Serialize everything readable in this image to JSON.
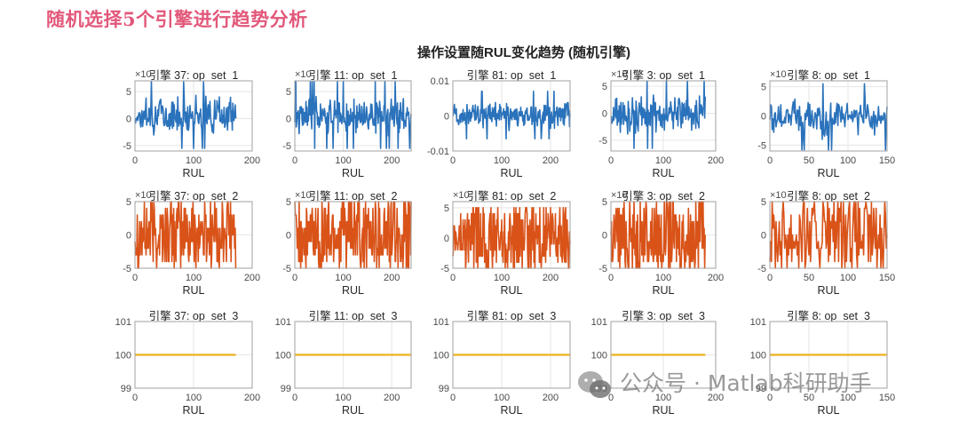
{
  "heading": "随机选择5个引擎进行趋势分析",
  "figure_title": "操作设置随RUL变化趋势 (随机引擎)",
  "watermark": "公众号 · Matlab科研助手",
  "colors": {
    "op_set_1": "#2a72bb",
    "op_set_2": "#d95319",
    "op_set_3": "#edb120",
    "heading": "#e2587a"
  },
  "chart_data": {
    "type": "line",
    "title": "操作设置随RUL变化趋势 (随机引擎)",
    "layout": "3x5 subplot grid",
    "xlabel": "RUL",
    "grid": true,
    "engines": [
      37,
      11,
      81,
      3,
      8
    ],
    "subplots": [
      {
        "row": 1,
        "engine": 37,
        "title": "引擎 37: op_set_1",
        "xlim": [
          0,
          200
        ],
        "xticks": [
          0,
          100,
          200
        ],
        "ylim": [
          -6,
          7
        ],
        "yticks": [
          -5,
          0,
          5
        ],
        "y_exponent": "×10^-3",
        "data_x_max": 172,
        "series_color": "#2a72bb",
        "value_range": [
          -5.5,
          6.8
        ]
      },
      {
        "row": 1,
        "engine": 11,
        "title": "引擎 11: op_set_1",
        "xlim": [
          0,
          240
        ],
        "xticks": [
          0,
          100,
          200
        ],
        "ylim": [
          -6,
          7
        ],
        "yticks": [
          -5,
          0,
          5
        ],
        "y_exponent": "×10^-3",
        "data_x_max": 240,
        "series_color": "#2a72bb",
        "value_range": [
          -5.5,
          6.8
        ]
      },
      {
        "row": 1,
        "engine": 81,
        "title": "引擎 81: op_set_1",
        "xlim": [
          0,
          240
        ],
        "xticks": [
          0,
          100,
          200
        ],
        "ylim": [
          -0.01,
          0.01
        ],
        "yticks": [
          -0.01,
          0,
          0.01
        ],
        "y_exponent": "",
        "data_x_max": 240,
        "series_color": "#2a72bb",
        "value_range": [
          -0.0065,
          0.007
        ]
      },
      {
        "row": 1,
        "engine": 3,
        "title": "引擎 3: op_set_1",
        "xlim": [
          0,
          200
        ],
        "xticks": [
          0,
          100,
          200
        ],
        "ylim": [
          -7,
          6
        ],
        "yticks": [
          -5,
          0,
          5
        ],
        "y_exponent": "×10^-3",
        "data_x_max": 180,
        "series_color": "#2a72bb",
        "value_range": [
          -6.5,
          6
        ]
      },
      {
        "row": 1,
        "engine": 8,
        "title": "引擎 8: op_set_1",
        "xlim": [
          0,
          150
        ],
        "xticks": [
          0,
          50,
          100,
          150
        ],
        "ylim": [
          -6,
          6
        ],
        "yticks": [
          -5,
          0,
          5
        ],
        "y_exponent": "×10^-3",
        "data_x_max": 150,
        "series_color": "#2a72bb",
        "value_range": [
          -5.8,
          5.5
        ]
      },
      {
        "row": 2,
        "engine": 37,
        "title": "引擎 37: op_set_2",
        "xlim": [
          0,
          200
        ],
        "xticks": [
          0,
          100,
          200
        ],
        "ylim": [
          -5,
          5
        ],
        "yticks": [
          -5,
          0,
          5
        ],
        "y_exponent": "×10^-4",
        "data_x_max": 172,
        "series_color": "#d95319",
        "value_range": [
          -5,
          5
        ]
      },
      {
        "row": 2,
        "engine": 11,
        "title": "引擎 11: op_set_2",
        "xlim": [
          0,
          240
        ],
        "xticks": [
          0,
          100,
          200
        ],
        "ylim": [
          -5,
          5
        ],
        "yticks": [
          -5,
          0,
          5
        ],
        "y_exponent": "×10^-4",
        "data_x_max": 240,
        "series_color": "#d95319",
        "value_range": [
          -5,
          5
        ]
      },
      {
        "row": 2,
        "engine": 81,
        "title": "引擎 81: op_set_2",
        "xlim": [
          0,
          240
        ],
        "xticks": [
          0,
          100,
          200
        ],
        "ylim": [
          -5,
          6
        ],
        "yticks": [
          -5,
          0,
          5
        ],
        "y_exponent": "×10^-4",
        "data_x_max": 240,
        "series_color": "#d95319",
        "value_range": [
          -5,
          6
        ]
      },
      {
        "row": 2,
        "engine": 3,
        "title": "引擎 3: op_set_2",
        "xlim": [
          0,
          200
        ],
        "xticks": [
          0,
          100,
          200
        ],
        "ylim": [
          -5,
          5
        ],
        "yticks": [
          -5,
          0,
          5
        ],
        "y_exponent": "×10^-4",
        "data_x_max": 180,
        "series_color": "#d95319",
        "value_range": [
          -5,
          5
        ]
      },
      {
        "row": 2,
        "engine": 8,
        "title": "引擎 8: op_set_2",
        "xlim": [
          0,
          150
        ],
        "xticks": [
          0,
          50,
          100,
          150
        ],
        "ylim": [
          -5,
          5
        ],
        "yticks": [
          -5,
          0,
          5
        ],
        "y_exponent": "×10^-4",
        "data_x_max": 150,
        "series_color": "#d95319",
        "value_range": [
          -5,
          5
        ]
      },
      {
        "row": 3,
        "engine": 37,
        "title": "引擎 37: op_set_3",
        "xlim": [
          0,
          200
        ],
        "xticks": [
          0,
          100,
          200
        ],
        "ylim": [
          99,
          101
        ],
        "yticks": [
          99,
          100,
          101
        ],
        "y_exponent": "",
        "data_x_max": 172,
        "series_color": "#edb120",
        "constant_value": 100
      },
      {
        "row": 3,
        "engine": 11,
        "title": "引擎 11: op_set_3",
        "xlim": [
          0,
          240
        ],
        "xticks": [
          0,
          100,
          200
        ],
        "ylim": [
          99,
          101
        ],
        "yticks": [
          99,
          100,
          101
        ],
        "y_exponent": "",
        "data_x_max": 240,
        "series_color": "#edb120",
        "constant_value": 100
      },
      {
        "row": 3,
        "engine": 81,
        "title": "引擎 81: op_set_3",
        "xlim": [
          0,
          240
        ],
        "xticks": [
          0,
          100,
          200
        ],
        "ylim": [
          99,
          101
        ],
        "yticks": [
          99,
          100,
          101
        ],
        "y_exponent": "",
        "data_x_max": 240,
        "series_color": "#edb120",
        "constant_value": 100
      },
      {
        "row": 3,
        "engine": 3,
        "title": "引擎 3: op_set_3",
        "xlim": [
          0,
          200
        ],
        "xticks": [
          0,
          100,
          200
        ],
        "ylim": [
          99,
          101
        ],
        "yticks": [
          99,
          100,
          101
        ],
        "y_exponent": "",
        "data_x_max": 180,
        "series_color": "#edb120",
        "constant_value": 100
      },
      {
        "row": 3,
        "engine": 8,
        "title": "引擎 8: op_set_3",
        "xlim": [
          0,
          150
        ],
        "xticks": [
          0,
          50,
          100,
          150
        ],
        "ylim": [
          99,
          101
        ],
        "yticks": [
          99,
          100,
          101
        ],
        "y_exponent": "",
        "data_x_max": 150,
        "series_color": "#edb120",
        "constant_value": 100
      }
    ]
  }
}
